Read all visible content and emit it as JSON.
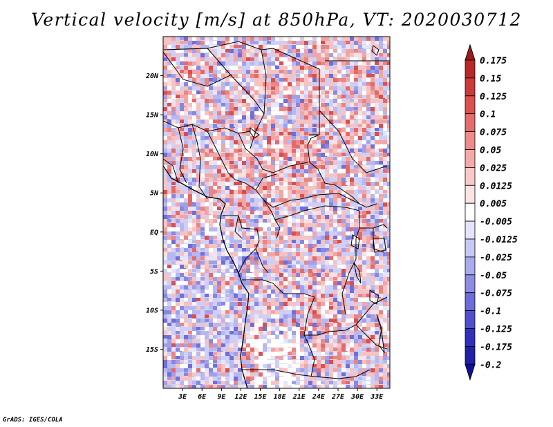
{
  "title": "Vertical velocity [m/s] at 850hPa, VT: 2020030712",
  "credit": "GrADS: IGES/COLA",
  "map": {
    "lon_range": [
      0,
      35
    ],
    "lat_range": [
      -20,
      25
    ],
    "lon_ticks": [
      {
        "value": 3,
        "label": "3E"
      },
      {
        "value": 6,
        "label": "6E"
      },
      {
        "value": 9,
        "label": "9E"
      },
      {
        "value": 12,
        "label": "12E"
      },
      {
        "value": 15,
        "label": "15E"
      },
      {
        "value": 18,
        "label": "18E"
      },
      {
        "value": 21,
        "label": "21E"
      },
      {
        "value": 24,
        "label": "24E"
      },
      {
        "value": 27,
        "label": "27E"
      },
      {
        "value": 30,
        "label": "30E"
      },
      {
        "value": 33,
        "label": "33E"
      }
    ],
    "lat_ticks": [
      {
        "value": 20,
        "label": "20N"
      },
      {
        "value": 15,
        "label": "15N"
      },
      {
        "value": 10,
        "label": "10N"
      },
      {
        "value": 5,
        "label": "5N"
      },
      {
        "value": 0,
        "label": "EQ"
      },
      {
        "value": -5,
        "label": "5S"
      },
      {
        "value": -10,
        "label": "10S"
      },
      {
        "value": -15,
        "label": "15S"
      }
    ]
  },
  "colorbar": {
    "levels": [
      {
        "label": "0.175",
        "color": "#a01a1a"
      },
      {
        "label": "0.15",
        "color": "#b82828"
      },
      {
        "label": "0.125",
        "color": "#cc3a3a"
      },
      {
        "label": "0.1",
        "color": "#dd5050"
      },
      {
        "label": "0.075",
        "color": "#e66b6b"
      },
      {
        "label": "0.05",
        "color": "#ee8a8a"
      },
      {
        "label": "0.025",
        "color": "#f5aaaa"
      },
      {
        "label": "0.0125",
        "color": "#f9c8c8"
      },
      {
        "label": "0.005",
        "color": "#fce3e3"
      },
      {
        "label": "-0.005",
        "color": "#ffffff"
      },
      {
        "label": "-0.0125",
        "color": "#e3e3fb"
      },
      {
        "label": "-0.025",
        "color": "#c8c8f5"
      },
      {
        "label": "-0.05",
        "color": "#aaaaee"
      },
      {
        "label": "-0.075",
        "color": "#8c8ce4"
      },
      {
        "label": "-0.1",
        "color": "#6c6cda"
      },
      {
        "label": "-0.125",
        "color": "#5050cc"
      },
      {
        "label": "-0.175",
        "color": "#3030bb"
      },
      {
        "label": "-0.2",
        "color": "#2020a8"
      }
    ],
    "bottom_color": "#1010a0"
  }
}
